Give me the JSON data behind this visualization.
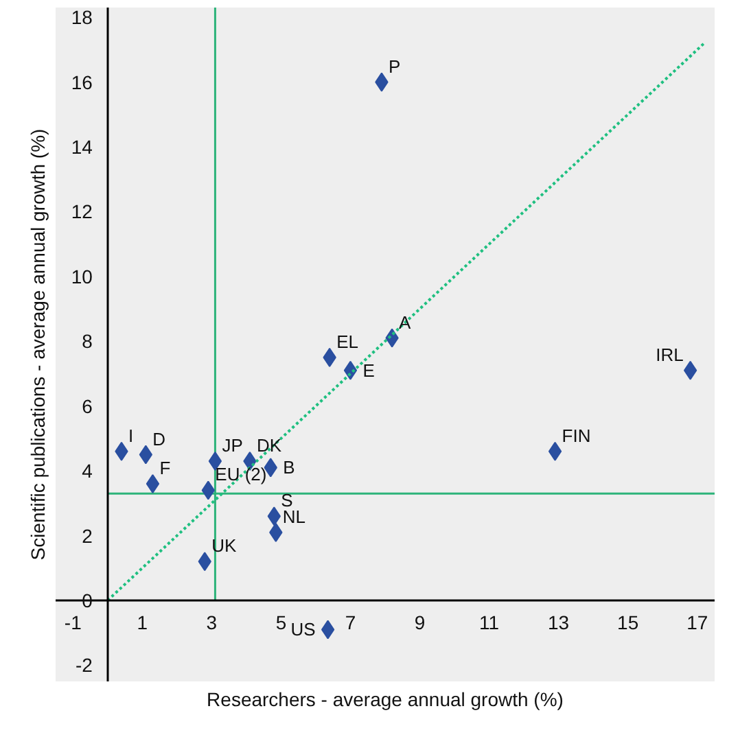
{
  "chart_data": {
    "type": "scatter",
    "xlabel": "Researchers - average annual growth (%)",
    "ylabel": "Scientific publications - average annual growth (%)",
    "xlim": [
      -1.5,
      17.5
    ],
    "ylim": [
      -2.5,
      18.3
    ],
    "xticks": [
      -1,
      1,
      3,
      5,
      7,
      9,
      11,
      13,
      15,
      17
    ],
    "yticks": [
      -2,
      0,
      2,
      4,
      6,
      8,
      10,
      12,
      14,
      16,
      18
    ],
    "grid": false,
    "marker": "diamond",
    "series": [
      {
        "type": "scatter",
        "color": "#2a4fa0",
        "x": [
          0.4,
          1.1,
          1.3,
          3.1,
          2.9,
          2.8,
          4.1,
          4.7,
          4.8,
          4.85,
          6.4,
          7.0,
          8.2,
          7.9,
          12.9,
          16.8,
          6.35
        ],
        "values": [
          4.6,
          4.5,
          3.6,
          4.3,
          3.4,
          1.2,
          4.3,
          4.1,
          2.6,
          2.1,
          7.5,
          7.1,
          8.1,
          16.0,
          4.6,
          7.1,
          -0.9
        ]
      },
      {
        "type": "line",
        "color": "#1fbf80",
        "line_style": "dotted",
        "marker": "none",
        "x": [
          0,
          17.2
        ],
        "values": [
          0,
          17.2
        ]
      }
    ],
    "ref_lines": [
      {
        "axis": "x",
        "value": 3.1,
        "color": "#2db37a"
      },
      {
        "axis": "y",
        "value": 3.3,
        "color": "#2db37a"
      }
    ],
    "annotations": [
      {
        "text": "I",
        "x": 0.4,
        "y": 4.6
      },
      {
        "text": "D",
        "x": 1.1,
        "y": 4.5
      },
      {
        "text": "F",
        "x": 1.3,
        "y": 3.6
      },
      {
        "text": "JP",
        "x": 3.1,
        "y": 4.3
      },
      {
        "text": "EU (2)",
        "x": 2.9,
        "y": 3.4
      },
      {
        "text": "UK",
        "x": 2.8,
        "y": 1.2
      },
      {
        "text": "DK",
        "x": 4.1,
        "y": 4.3
      },
      {
        "text": "B",
        "x": 4.7,
        "y": 4.1
      },
      {
        "text": "S",
        "x": 4.8,
        "y": 2.6
      },
      {
        "text": "NL",
        "x": 4.85,
        "y": 2.1
      },
      {
        "text": "EL",
        "x": 6.4,
        "y": 7.5
      },
      {
        "text": "E",
        "x": 7.0,
        "y": 7.1
      },
      {
        "text": "A",
        "x": 8.2,
        "y": 8.1
      },
      {
        "text": "P",
        "x": 7.9,
        "y": 16.0
      },
      {
        "text": "FIN",
        "x": 12.9,
        "y": 4.6
      },
      {
        "text": "IRL",
        "x": 16.8,
        "y": 7.1
      },
      {
        "text": "US",
        "x": 6.35,
        "y": -0.9
      }
    ]
  }
}
